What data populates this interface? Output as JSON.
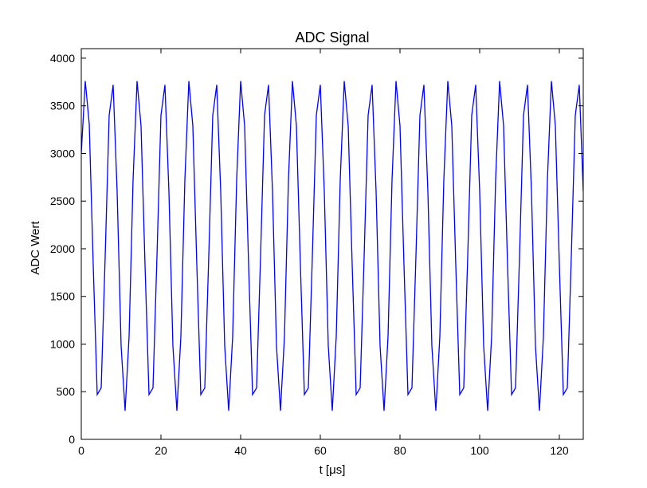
{
  "chart_data": {
    "type": "line",
    "title": "ADC Signal",
    "xlabel": "t [μs]",
    "ylabel": "ADC Wert",
    "xlim": [
      0,
      126
    ],
    "ylim": [
      0,
      4100
    ],
    "xticks": [
      0,
      20,
      40,
      60,
      80,
      100,
      120
    ],
    "yticks": [
      0,
      500,
      1000,
      1500,
      2000,
      2500,
      3000,
      3500,
      4000
    ],
    "grid": false,
    "legend": "none",
    "series": [
      {
        "color": "#0000ff",
        "x": [
          0,
          1,
          2,
          3,
          4,
          5,
          6,
          7,
          8,
          9,
          10,
          11,
          12,
          13,
          14,
          15,
          16,
          17,
          18,
          19,
          20,
          21,
          22,
          23,
          24,
          25,
          26,
          27,
          28,
          29,
          30,
          31,
          32,
          33,
          34,
          35,
          36,
          37,
          38,
          39,
          40,
          41,
          42,
          43,
          44,
          45,
          46,
          47,
          48,
          49,
          50,
          51,
          52,
          53,
          54,
          55,
          56,
          57,
          58,
          59,
          60,
          61,
          62,
          63,
          64,
          65,
          66,
          67,
          68,
          69,
          70,
          71,
          72,
          73,
          74,
          75,
          76,
          77,
          78,
          79,
          80,
          81,
          82,
          83,
          84,
          85,
          86,
          87,
          88,
          89,
          90,
          91,
          92,
          93,
          94,
          95,
          96,
          97,
          98,
          99,
          100,
          101,
          102,
          103,
          104,
          105,
          106,
          107,
          108,
          109,
          110,
          111,
          112,
          113,
          114,
          115,
          116,
          117,
          118,
          119,
          120,
          121,
          122,
          123,
          124,
          125,
          126
        ],
        "y": [
          3000,
          3760,
          3310,
          1830,
          470,
          540,
          1920,
          3400,
          3720,
          2600,
          980,
          300,
          1080,
          2720,
          3760,
          3290,
          1830,
          470,
          540,
          1920,
          3400,
          3720,
          2600,
          980,
          300,
          1080,
          2720,
          3760,
          3290,
          1830,
          470,
          540,
          1920,
          3400,
          3720,
          2600,
          980,
          300,
          1080,
          2720,
          3760,
          3290,
          1830,
          470,
          540,
          1920,
          3400,
          3720,
          2600,
          980,
          300,
          1080,
          2720,
          3760,
          3290,
          1830,
          470,
          540,
          1920,
          3400,
          3720,
          2600,
          980,
          300,
          1080,
          2720,
          3760,
          3290,
          1830,
          470,
          540,
          1920,
          3400,
          3720,
          2600,
          980,
          300,
          1080,
          2720,
          3760,
          3290,
          1830,
          470,
          540,
          1920,
          3400,
          3720,
          2600,
          980,
          300,
          1080,
          2720,
          3760,
          3290,
          1830,
          470,
          540,
          1920,
          3400,
          3720,
          2600,
          980,
          300,
          1080,
          2720,
          3760,
          3290,
          1830,
          470,
          540,
          1920,
          3400,
          3720,
          2600,
          980,
          300,
          1080,
          2720,
          3760,
          3290,
          1830,
          470,
          540,
          1920,
          3400,
          3720,
          2600
        ]
      }
    ]
  }
}
